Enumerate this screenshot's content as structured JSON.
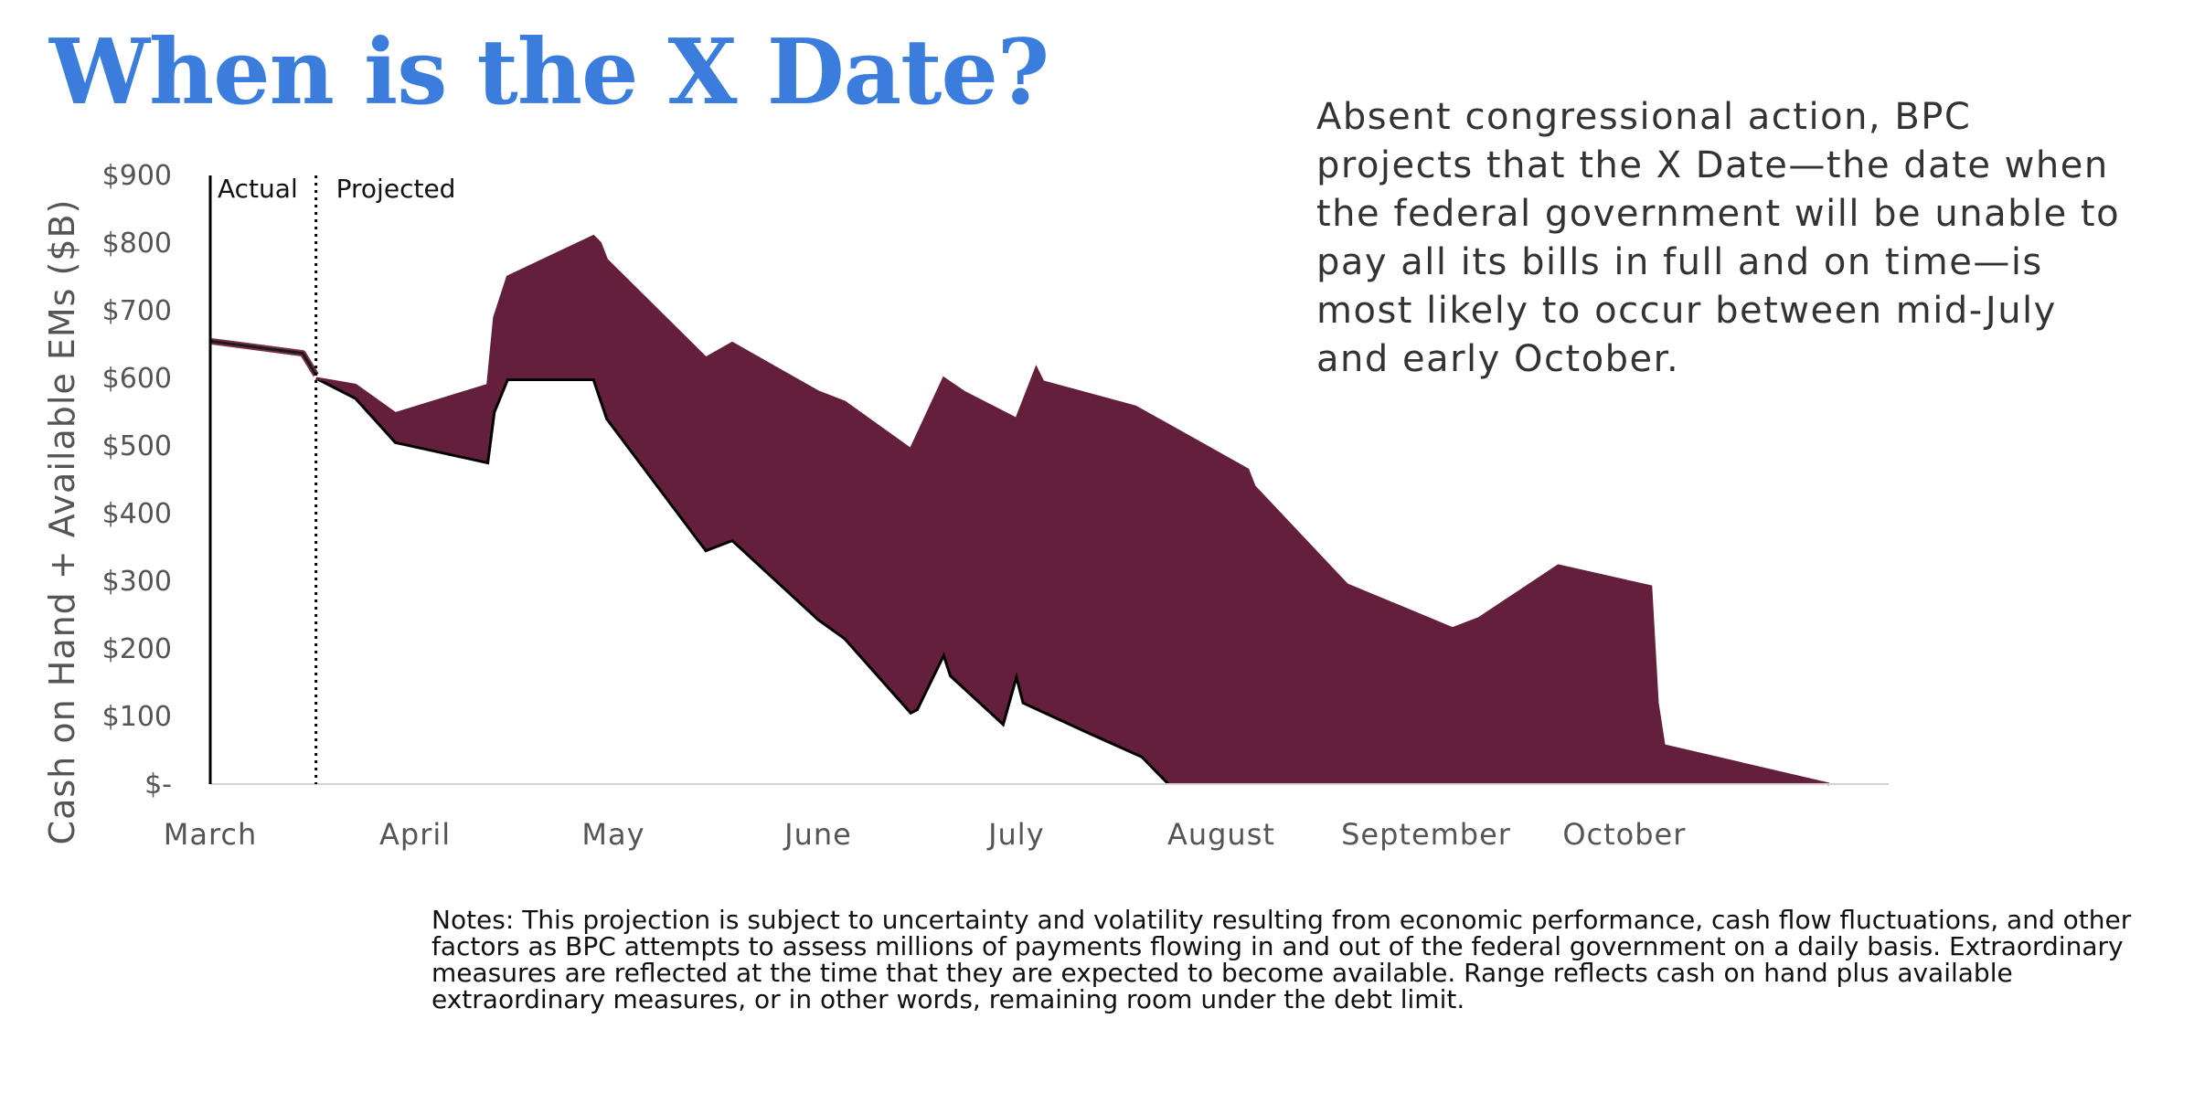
{
  "title": "When is the X Date?",
  "description": "Absent congressional action, BPC projects that the X Date—the date when the federal government will be unable to pay all its bills in full and on time—is most likely to occur between mid-July and early October.",
  "notes": "Notes: This projection is subject to uncertainty and volatility resulting from economic performance, cash flow fluctuations, and other factors as BPC attempts to assess millions of payments flowing in and out of the federal government on a daily basis. Extraordinary measures are reflected at the time that they are expected to become available. Range reflects cash on hand plus available extraordinary measures, or in other words, remaining room under the debt limit.",
  "colors": {
    "title": "#3b7ddd",
    "range_fill": "#631f3b",
    "lower_line": "#000000"
  },
  "chart_data": {
    "type": "area",
    "ylabel": "Cash on Hand + Available EMs ($B)",
    "xlabel": "",
    "ylim": [
      0,
      900
    ],
    "yticks": [
      0,
      100,
      200,
      300,
      400,
      500,
      600,
      700,
      800,
      900
    ],
    "ytick_labels": [
      "$-",
      "$100",
      "$200",
      "$300",
      "$400",
      "$500",
      "$600",
      "$700",
      "$800",
      "$900"
    ],
    "xlim": [
      "2023-03-01",
      "2023-11-10"
    ],
    "x_month_labels": [
      {
        "date": "2023-03-01",
        "label": "March"
      },
      {
        "date": "2023-04-01",
        "label": "April"
      },
      {
        "date": "2023-05-01",
        "label": "May"
      },
      {
        "date": "2023-06-01",
        "label": "June"
      },
      {
        "date": "2023-07-01",
        "label": "July"
      },
      {
        "date": "2023-08-01",
        "label": "August"
      },
      {
        "date": "2023-09-01",
        "label": "September"
      },
      {
        "date": "2023-10-01",
        "label": "October"
      }
    ],
    "grid": false,
    "period_labels": {
      "actual": "Actual",
      "projected": "Projected"
    },
    "projection_start": "2023-03-17",
    "series": [
      {
        "role": "actual",
        "x": [
          "2023-03-01",
          "2023-03-15",
          "2023-03-17"
        ],
        "y": [
          655,
          637,
          605
        ]
      },
      {
        "role": "upper",
        "x": [
          "2023-03-17",
          "2023-03-23",
          "2023-03-29",
          "2023-04-12",
          "2023-04-13",
          "2023-04-15",
          "2023-04-28",
          "2023-04-29",
          "2023-04-30",
          "2023-05-15",
          "2023-05-19",
          "2023-06-01",
          "2023-06-05",
          "2023-06-15",
          "2023-06-20",
          "2023-06-23",
          "2023-07-01",
          "2023-07-04",
          "2023-07-05",
          "2023-07-19",
          "2023-08-05",
          "2023-08-06",
          "2023-08-20",
          "2023-09-05",
          "2023-09-09",
          "2023-09-21",
          "2023-10-05",
          "2023-10-06",
          "2023-10-07",
          "2023-11-01"
        ],
        "y": [
          600,
          590,
          548,
          590,
          690,
          750,
          810,
          800,
          775,
          630,
          652,
          580,
          565,
          495,
          600,
          580,
          540,
          615,
          595,
          558,
          465,
          440,
          295,
          230,
          245,
          323,
          292,
          120,
          57,
          0
        ]
      },
      {
        "role": "lower",
        "x": [
          "2023-03-17",
          "2023-03-23",
          "2023-03-29",
          "2023-04-12",
          "2023-04-13",
          "2023-04-15",
          "2023-04-28",
          "2023-04-30",
          "2023-05-15",
          "2023-05-19",
          "2023-06-01",
          "2023-06-05",
          "2023-06-15",
          "2023-06-16",
          "2023-06-20",
          "2023-06-21",
          "2023-06-29",
          "2023-07-01",
          "2023-07-02",
          "2023-07-12",
          "2023-07-20",
          "2023-07-24"
        ],
        "y": [
          600,
          570,
          505,
          475,
          550,
          598,
          598,
          540,
          345,
          360,
          243,
          215,
          105,
          110,
          190,
          160,
          88,
          158,
          120,
          75,
          40,
          0
        ]
      }
    ]
  }
}
